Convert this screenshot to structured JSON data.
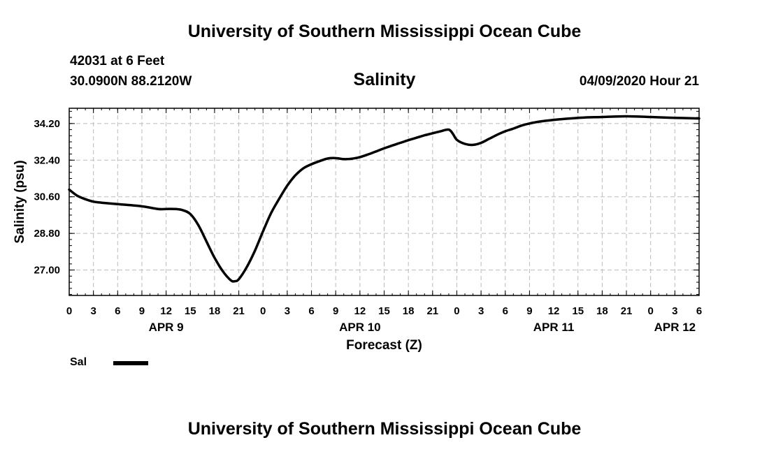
{
  "header": {
    "title": "University of Southern Mississippi Ocean Cube",
    "station": "42031 at 6 Feet",
    "coordinates": "30.0900N 88.2120W",
    "datetime": "04/09/2020 Hour 21"
  },
  "footer": {
    "title": "University of Southern Mississippi Ocean Cube"
  },
  "legend": {
    "label": "Sal",
    "color": "#000000"
  },
  "chart_data": {
    "type": "line",
    "title": "Salinity",
    "xlabel": "Forecast (Z)",
    "ylabel": "Salinity (psu)",
    "ylim": [
      25.75,
      34.95
    ],
    "xlim": [
      0,
      78
    ],
    "grid": true,
    "x_ticks": [
      0,
      3,
      6,
      9,
      12,
      15,
      18,
      21,
      24,
      27,
      30,
      33,
      36,
      39,
      42,
      45,
      48,
      51,
      54,
      57,
      60,
      63,
      66,
      69,
      72,
      75,
      78
    ],
    "x_tick_labels": [
      "0",
      "3",
      "6",
      "9",
      "12",
      "15",
      "18",
      "21",
      "0",
      "3",
      "6",
      "9",
      "12",
      "15",
      "18",
      "21",
      "0",
      "3",
      "6",
      "9",
      "12",
      "15",
      "18",
      "21",
      "0",
      "3",
      "6"
    ],
    "day_labels": [
      {
        "label": "APR 9",
        "x": 12
      },
      {
        "label": "APR 10",
        "x": 36
      },
      {
        "label": "APR 11",
        "x": 60
      },
      {
        "label": "APR 12",
        "x": 75
      }
    ],
    "y_ticks": [
      27.0,
      28.8,
      30.6,
      32.4,
      34.2
    ],
    "y_tick_labels": [
      "27.00",
      "28.80",
      "30.60",
      "32.40",
      "34.20"
    ],
    "series": [
      {
        "name": "Sal",
        "x": [
          0,
          1,
          2,
          3,
          4,
          6,
          9,
          11,
          12,
          13,
          14,
          15,
          16,
          17,
          18,
          19,
          20,
          20.5,
          21,
          22,
          23,
          24,
          25,
          26,
          27,
          28,
          29,
          30,
          31,
          32,
          33,
          34,
          35,
          36,
          37,
          38,
          39,
          40,
          41,
          42,
          43,
          44,
          45,
          46,
          47,
          47.5,
          48,
          49,
          50,
          51,
          52,
          53,
          54,
          55,
          56,
          57,
          58,
          60,
          62,
          64,
          66,
          68,
          70,
          72,
          75,
          78
        ],
        "y": [
          30.95,
          30.65,
          30.48,
          30.36,
          30.31,
          30.24,
          30.13,
          30.0,
          30.0,
          30.0,
          29.95,
          29.75,
          29.2,
          28.4,
          27.6,
          26.95,
          26.5,
          26.45,
          26.55,
          27.15,
          27.95,
          28.9,
          29.8,
          30.5,
          31.15,
          31.65,
          32.0,
          32.2,
          32.35,
          32.48,
          32.5,
          32.45,
          32.47,
          32.55,
          32.68,
          32.83,
          32.98,
          33.12,
          33.25,
          33.38,
          33.5,
          33.62,
          33.72,
          33.82,
          33.9,
          33.7,
          33.4,
          33.2,
          33.15,
          33.25,
          33.45,
          33.65,
          33.82,
          33.95,
          34.1,
          34.2,
          34.28,
          34.38,
          34.45,
          34.5,
          34.52,
          34.55,
          34.55,
          34.52,
          34.48,
          34.45
        ]
      }
    ]
  }
}
